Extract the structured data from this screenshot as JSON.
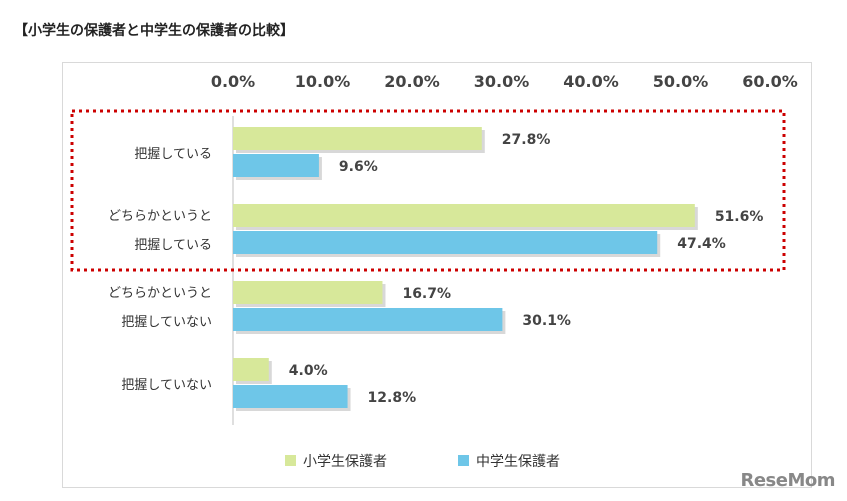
{
  "page_title": "【小学生の保護者と中学生の保護者の比較】",
  "brand": "ReseMom",
  "colors": {
    "elementary": "#d7e89a",
    "junior_high": "#6ec6e8",
    "highlight_box": "#cc0000",
    "axis": "#bfbfbf"
  },
  "chart_data": {
    "type": "bar",
    "orientation": "horizontal",
    "title": "",
    "xlabel": "",
    "ylabel": "",
    "xlim": [
      0,
      60
    ],
    "x_ticks": [
      "0.0%",
      "10.0%",
      "20.0%",
      "30.0%",
      "40.0%",
      "50.0%",
      "60.0%"
    ],
    "x_axis_position": "top",
    "grid": false,
    "legend_position": "bottom",
    "categories": [
      [
        "把握している"
      ],
      [
        "どちらかというと",
        "把握している"
      ],
      [
        "どちらかというと",
        "把握していない"
      ],
      [
        "把握していない"
      ]
    ],
    "series": [
      {
        "name": "小学生保護者",
        "values": [
          27.8,
          51.6,
          16.7,
          4.0
        ],
        "labels": [
          "27.8%",
          "51.6%",
          "16.7%",
          "4.0%"
        ]
      },
      {
        "name": "中学生保護者",
        "values": [
          9.6,
          47.4,
          30.1,
          12.8
        ],
        "labels": [
          "9.6%",
          "47.4%",
          "30.1%",
          "12.8%"
        ]
      }
    ],
    "highlighted_categories": [
      0,
      1
    ]
  }
}
